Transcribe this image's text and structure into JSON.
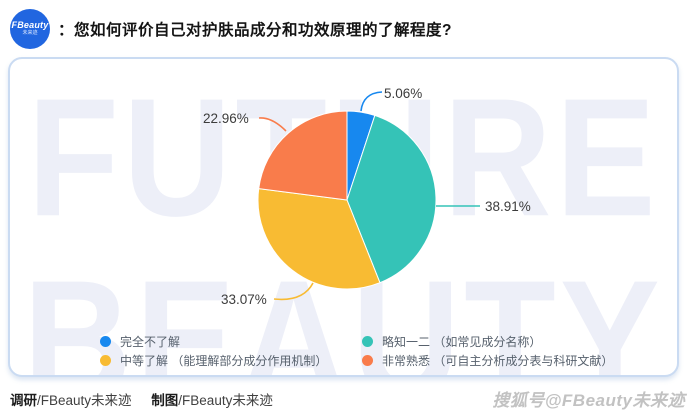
{
  "header": {
    "logo": {
      "brand": "FBeauty",
      "sub": "未来迹"
    },
    "title": "：您如何评价自己对护肤品成分和功效原理的了解程度?"
  },
  "chart_data": {
    "type": "pie",
    "title": "您如何评价自己对护肤品成分和功效原理的了解程度?",
    "unit": "%",
    "direction": "clockwise",
    "start_angle_deg": 0,
    "legend_position": "bottom",
    "slices": [
      {
        "name": "完全不了解",
        "value": 5.06,
        "display": "5.06%",
        "color": "#1788ef"
      },
      {
        "name": "略知一二 （如常见成分名称）",
        "value": 38.91,
        "display": "38.91%",
        "color": "#35c3b7"
      },
      {
        "name": "中等了解 （能理解部分成分作用机制）",
        "value": 33.07,
        "display": "33.07%",
        "color": "#f8bb33"
      },
      {
        "name": "非常熟悉 （可自主分析成分表与科研文献）",
        "value": 22.96,
        "display": "22.96%",
        "color": "#f97c4b"
      }
    ]
  },
  "watermark": {
    "line1": "FUTURE",
    "line2": "BEAUTY",
    "platform": "搜狐号@FBeauty未来迹"
  },
  "footer": {
    "credits": [
      {
        "label": "调研",
        "value": "/FBeauty未来迹"
      },
      {
        "label": "制图",
        "value": "/FBeauty未来迹"
      }
    ]
  }
}
